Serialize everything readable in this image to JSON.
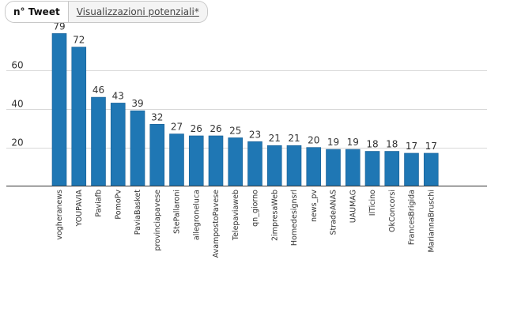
{
  "tabs": [
    {
      "label": "n° Tweet",
      "active": true
    },
    {
      "label": "Visualizzazioni potenziali*",
      "active": false
    }
  ],
  "chart_data": {
    "type": "bar",
    "title": "",
    "xlabel": "",
    "ylabel": "",
    "ylim": [
      0,
      80
    ],
    "yticks": [
      20,
      40,
      60
    ],
    "grid": true,
    "bar_color": "#1f77b4",
    "categories": [
      "vogheranews",
      "YOUPAVIA",
      "Paviafb",
      "PomoPv",
      "PaviaBasket",
      "provinciapavese",
      "StePallaroni",
      "allegroneluca",
      "AvampostoPavese",
      "Telepaviaweb",
      "qn_giorno",
      "2impresaWeb",
      "Homedesignsrl",
      "news_pv",
      "StradeANAS",
      "UAUMAG",
      "IlTicino",
      "OkConcorsi",
      "FrancesBrigida",
      "MariannaBruschi"
    ],
    "values": [
      79,
      72,
      46,
      43,
      39,
      32,
      27,
      26,
      26,
      25,
      23,
      21,
      21,
      20,
      19,
      19,
      18,
      18,
      17,
      17
    ]
  }
}
